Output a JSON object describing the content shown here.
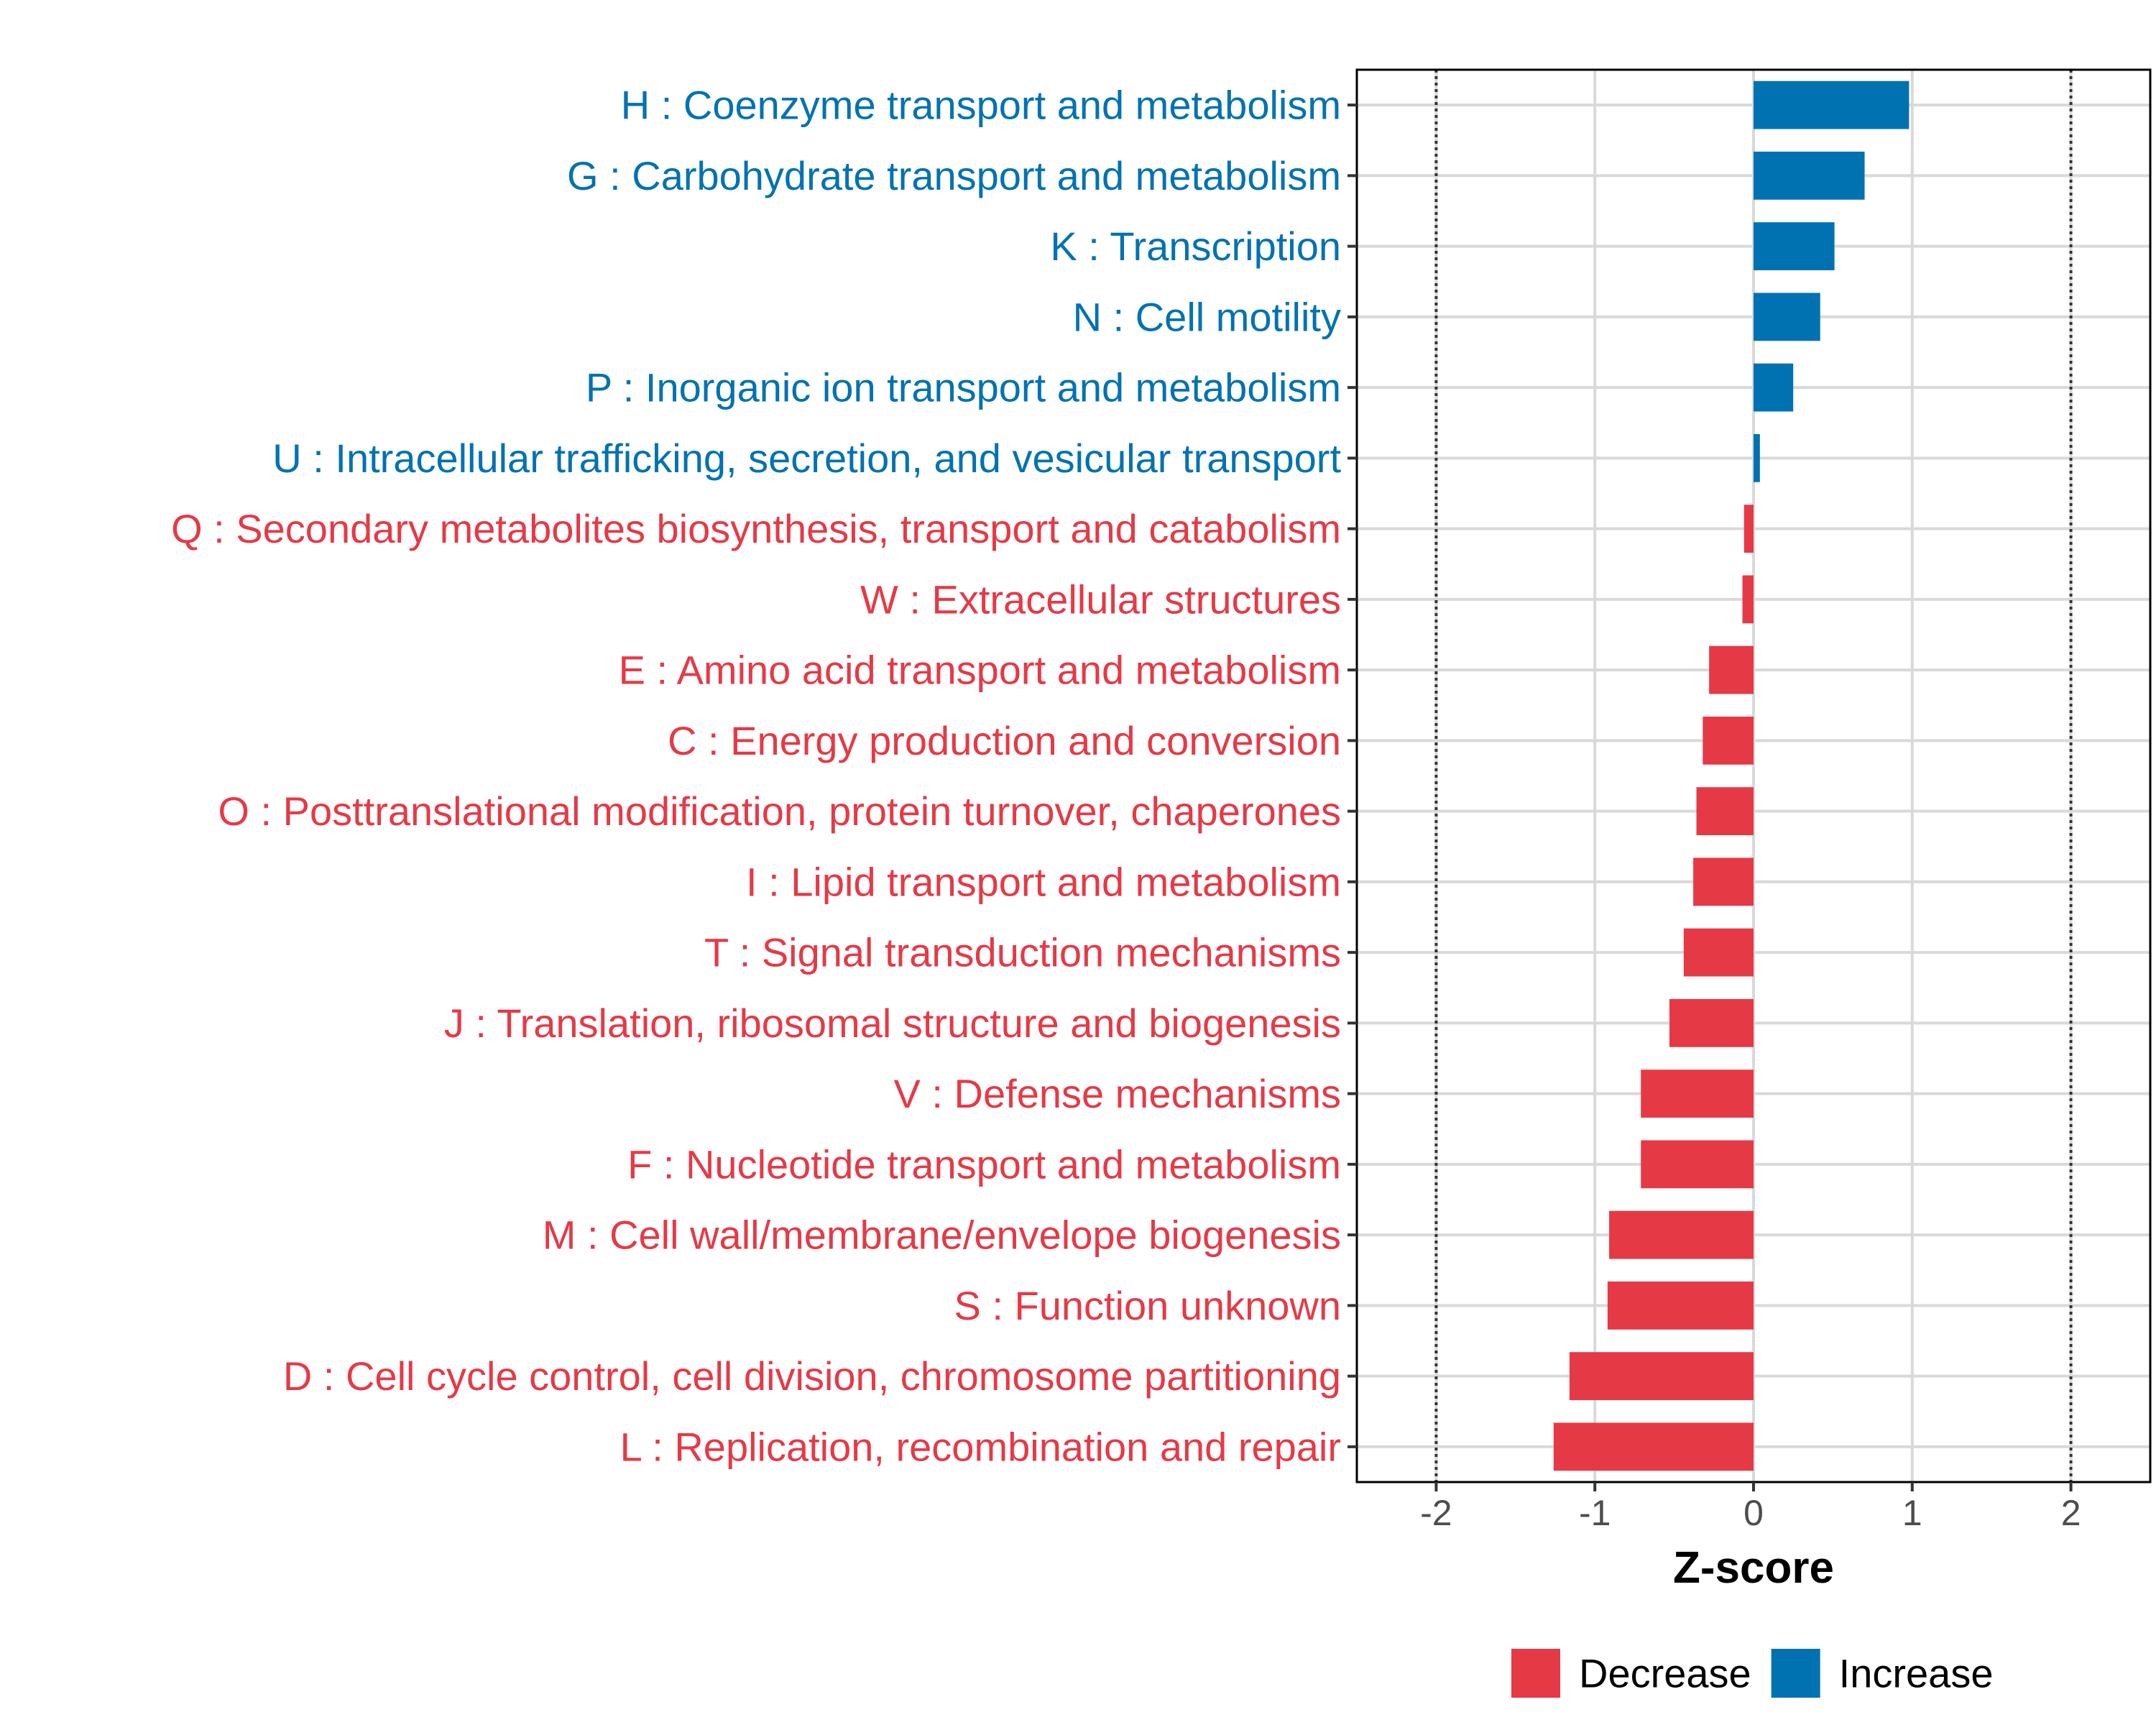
{
  "chart_data": {
    "type": "bar",
    "orientation": "horizontal",
    "title": "",
    "xlabel": "Z-score",
    "ylabel": "",
    "xlim": [
      -2.5,
      2.5
    ],
    "xticks": [
      -2,
      -1,
      0,
      1,
      2
    ],
    "xtick_labels": [
      "-2",
      "-1",
      "0",
      "1",
      "2"
    ],
    "reference_lines": [
      -2,
      2
    ],
    "grid": true,
    "colors": {
      "Increase": "#0072b2",
      "Decrease": "#e63946"
    },
    "categories": [
      "H : Coenzyme transport and metabolism",
      "G : Carbohydrate transport and metabolism",
      "K : Transcription",
      "N : Cell motility",
      "P : Inorganic ion transport and metabolism",
      "U : Intracellular trafficking, secretion, and vesicular transport",
      "Q : Secondary metabolites biosynthesis, transport and catabolism",
      "W : Extracellular structures",
      "E : Amino acid transport and metabolism",
      "C : Energy production and conversion",
      "O : Posttranslational modification, protein turnover, chaperones",
      "I : Lipid transport and metabolism",
      "T : Signal transduction mechanisms",
      "J : Translation, ribosomal structure and biogenesis",
      "V : Defense mechanisms",
      "F : Nucleotide transport and metabolism",
      "M : Cell wall/membrane/envelope biogenesis",
      "S : Function unknown",
      "D : Cell cycle control, cell division, chromosome partitioning",
      "L : Replication, recombination and repair"
    ],
    "values": [
      0.98,
      0.7,
      0.51,
      0.42,
      0.25,
      0.04,
      -0.06,
      -0.07,
      -0.28,
      -0.32,
      -0.36,
      -0.38,
      -0.44,
      -0.53,
      -0.71,
      -0.71,
      -0.91,
      -0.92,
      -1.16,
      -1.26
    ],
    "groups": [
      "Increase",
      "Increase",
      "Increase",
      "Increase",
      "Increase",
      "Increase",
      "Decrease",
      "Decrease",
      "Decrease",
      "Decrease",
      "Decrease",
      "Decrease",
      "Decrease",
      "Decrease",
      "Decrease",
      "Decrease",
      "Decrease",
      "Decrease",
      "Decrease",
      "Decrease"
    ],
    "legend": {
      "position": "bottom",
      "entries": [
        "Decrease",
        "Increase"
      ]
    }
  }
}
